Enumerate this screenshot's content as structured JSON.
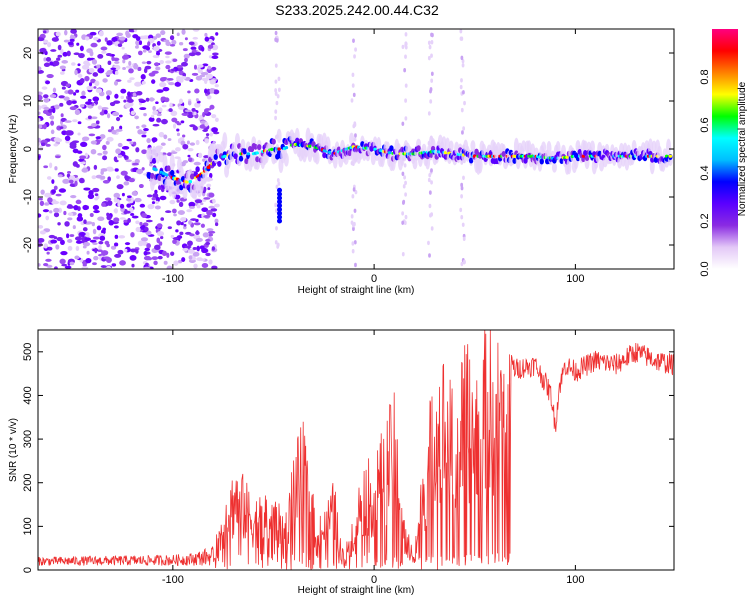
{
  "title": "S233.2025.242.00.44.C32",
  "chart_data": [
    {
      "type": "heatmap",
      "name": "spectrogram",
      "xlabel": "Height of straight line (km)",
      "ylabel": "Frequency (Hz)",
      "xlim": [
        -167,
        149
      ],
      "ylim": [
        -25,
        25
      ],
      "xticks": [
        -100,
        0,
        100
      ],
      "xtick_labels": [
        "-100",
        "0",
        "100"
      ],
      "yticks": [
        -20,
        -10,
        0,
        10,
        20
      ],
      "ytick_labels": [
        "-20",
        "-10",
        "0",
        "10",
        "20"
      ],
      "ridge": {
        "x": [
          -110,
          -100,
          -92,
          -85,
          -78,
          -70,
          -60,
          -50,
          -45,
          -40,
          -30,
          -20,
          -10,
          0,
          10,
          20,
          30,
          40,
          50,
          60,
          70,
          80,
          90,
          100,
          110,
          120,
          130,
          148
        ],
        "y": [
          -4,
          -6,
          -7,
          -5,
          -2,
          -1,
          -1,
          0,
          0,
          1,
          0.5,
          -1,
          0.5,
          0,
          -1,
          -1,
          -0.5,
          -1,
          -1.5,
          -1.5,
          -1.5,
          -1.5,
          -2,
          -1.5,
          -1.5,
          -1.5,
          -1.5,
          -1.5
        ]
      },
      "colorbar": {
        "label": "Normalized spectral amplitude",
        "range": [
          0,
          1
        ],
        "ticks": [
          0,
          0.2,
          0.4,
          0.6,
          0.8
        ],
        "tick_labels": [
          "0.0",
          "0.2",
          "0.4",
          "0.6",
          "0.8"
        ],
        "colors": [
          "#ffffff",
          "#e3c8f7",
          "#8a2be2",
          "#5a00ff",
          "#0000ff",
          "#00bfff",
          "#00ffff",
          "#00ff00",
          "#ffff00",
          "#ff8000",
          "#ff0000",
          "#ff0080"
        ]
      }
    },
    {
      "type": "line",
      "name": "snr",
      "xlabel": "Height of straight line (km)",
      "ylabel": "SNR (10 * v/v)",
      "xlim": [
        -167,
        149
      ],
      "ylim": [
        0,
        550
      ],
      "xticks": [
        -100,
        0,
        100
      ],
      "xtick_labels": [
        "-100",
        "0",
        "100"
      ],
      "yticks": [
        0,
        100,
        200,
        300,
        400,
        500
      ],
      "ytick_labels": [
        "0",
        "100",
        "200",
        "300",
        "400",
        "500"
      ],
      "color": "#ee3030",
      "envelope": {
        "x": [
          -167,
          -100,
          -90,
          -80,
          -72,
          -68,
          -60,
          -50,
          -45,
          -40,
          -35,
          -30,
          -25,
          -20,
          -15,
          -10,
          -5,
          0,
          5,
          10,
          15,
          20,
          25,
          30,
          35,
          40,
          45,
          50,
          55,
          60,
          65,
          70,
          80,
          85,
          88,
          90,
          92,
          95,
          100,
          110,
          120,
          130,
          140,
          149
        ],
        "y": [
          20,
          25,
          30,
          45,
          200,
          240,
          160,
          190,
          110,
          270,
          330,
          160,
          130,
          200,
          30,
          140,
          250,
          240,
          330,
          390,
          120,
          40,
          280,
          470,
          480,
          380,
          500,
          480,
          530,
          540,
          500,
          460,
          470,
          430,
          400,
          330,
          420,
          470,
          455,
          480,
          470,
          500,
          480,
          470
        ]
      }
    }
  ]
}
